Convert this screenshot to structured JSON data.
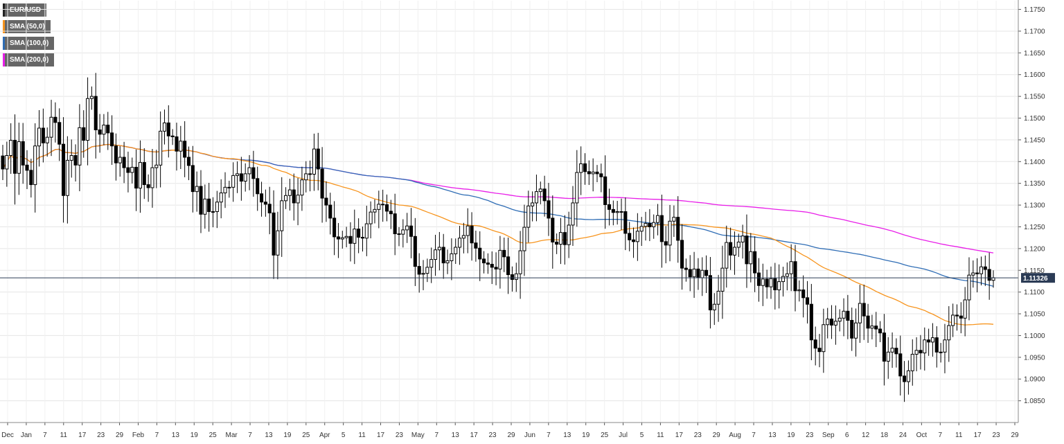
{
  "chart_data": {
    "type": "candlestick",
    "title": "",
    "instrument": "EUR/USD",
    "y_axis": {
      "min": 1.08,
      "max": 1.177,
      "ticks": [
        "1.1750",
        "1.1700",
        "1.1650",
        "1.1600",
        "1.1550",
        "1.1500",
        "1.1450",
        "1.1400",
        "1.1350",
        "1.1300",
        "1.1250",
        "1.1200",
        "1.1150",
        "1.1100",
        "1.1050",
        "1.1000",
        "1.0950",
        "1.0900",
        "1.0850"
      ],
      "position": "right"
    },
    "x_axis": {
      "labels": [
        "Dec",
        "Jan",
        "7",
        "11",
        "17",
        "23",
        "29",
        "Feb",
        "7",
        "13",
        "19",
        "25",
        "Mar",
        "7",
        "13",
        "19",
        "25",
        "Apr",
        "5",
        "11",
        "17",
        "23",
        "May",
        "7",
        "13",
        "17",
        "23",
        "29",
        "Jun",
        "7",
        "13",
        "19",
        "25",
        "Jul",
        "5",
        "11",
        "17",
        "23",
        "29",
        "Aug",
        "7",
        "13",
        "19",
        "23",
        "Sep",
        "6",
        "12",
        "18",
        "24",
        "Oct",
        "7",
        "11",
        "17",
        "23",
        "29"
      ]
    },
    "last_price": {
      "value": 1.11326,
      "label": "1.11326"
    },
    "legend": [
      {
        "label": "EUR/USD",
        "color": "#222222"
      },
      {
        "label": "SMA (50,0)",
        "color": "#f7941d"
      },
      {
        "label": "SMA (100,0)",
        "color": "#2f6db5"
      },
      {
        "label": "SMA (200,0)",
        "color": "#e81ee8"
      }
    ],
    "colors": {
      "up": "#ffffff",
      "down": "#000000",
      "outline": "#000000",
      "grid": "#e5e5e5",
      "price_line": "#2b3b55",
      "price_label_bg": "#2b3b55"
    },
    "series_close": [
      1.1383,
      1.1414,
      1.1449,
      1.1373,
      1.1446,
      1.1392,
      1.138,
      1.1347,
      1.1436,
      1.1477,
      1.1443,
      1.1456,
      1.1502,
      1.149,
      1.144,
      1.1322,
      1.1403,
      1.1414,
      1.1392,
      1.1478,
      1.1449,
      1.1545,
      1.155,
      1.1473,
      1.1463,
      1.1484,
      1.1466,
      1.1436,
      1.1397,
      1.141,
      1.1386,
      1.1375,
      1.1387,
      1.1339,
      1.1398,
      1.1347,
      1.134,
      1.1386,
      1.1392,
      1.147,
      1.1489,
      1.1459,
      1.1457,
      1.1424,
      1.1447,
      1.141,
      1.1391,
      1.1331,
      1.1343,
      1.1279,
      1.1314,
      1.1285,
      1.1285,
      1.1307,
      1.1328,
      1.1341,
      1.1341,
      1.1368,
      1.1372,
      1.1355,
      1.1372,
      1.1386,
      1.1361,
      1.1326,
      1.1307,
      1.1302,
      1.1282,
      1.1185,
      1.1241,
      1.131,
      1.1322,
      1.1335,
      1.1305,
      1.1323,
      1.1358,
      1.1372,
      1.1371,
      1.1429,
      1.1383,
      1.1316,
      1.13,
      1.127,
      1.1227,
      1.1222,
      1.1225,
      1.1228,
      1.1212,
      1.1245,
      1.1226,
      1.1224,
      1.1257,
      1.1284,
      1.129,
      1.1302,
      1.1301,
      1.1286,
      1.128,
      1.1234,
      1.1233,
      1.1243,
      1.1252,
      1.1228,
      1.1159,
      1.1141,
      1.1143,
      1.1157,
      1.1175,
      1.1197,
      1.1203,
      1.1167,
      1.1172,
      1.1188,
      1.1203,
      1.1224,
      1.123,
      1.1252,
      1.1213,
      1.1201,
      1.1176,
      1.1167,
      1.1164,
      1.1157,
      1.1153,
      1.1196,
      1.1181,
      1.114,
      1.1129,
      1.1142,
      1.1195,
      1.1249,
      1.1298,
      1.1305,
      1.1331,
      1.1337,
      1.131,
      1.127,
      1.1215,
      1.121,
      1.1237,
      1.1209,
      1.1254,
      1.1305,
      1.1375,
      1.1395,
      1.1377,
      1.1372,
      1.1376,
      1.1372,
      1.1365,
      1.1301,
      1.129,
      1.1283,
      1.1285,
      1.1285,
      1.1235,
      1.122,
      1.1216,
      1.124,
      1.1251,
      1.1258,
      1.125,
      1.126,
      1.1276,
      1.1216,
      1.1208,
      1.1263,
      1.1272,
      1.1219,
      1.1155,
      1.1152,
      1.1135,
      1.1153,
      1.1133,
      1.115,
      1.1138,
      1.1059,
      1.1072,
      1.1102,
      1.1155,
      1.1214,
      1.1185,
      1.1203,
      1.1215,
      1.1229,
      1.1165,
      1.1193,
      1.1144,
      1.1115,
      1.113,
      1.1112,
      1.1131,
      1.1105,
      1.1124,
      1.1136,
      1.1142,
      1.117,
      1.1103,
      1.1105,
      1.1087,
      1.1072,
      1.099,
      1.0971,
      1.0963,
      1.1025,
      1.1038,
      1.1024,
      1.1033,
      1.104,
      1.1056,
      1.1035,
      1.0994,
      1.1029,
      1.1074,
      1.1045,
      1.1017,
      1.1022,
      1.1015,
      1.1006,
      1.0941,
      1.0962,
      1.0971,
      1.0958,
      1.0907,
      1.0894,
      1.0919,
      1.0957,
      1.0966,
      1.096,
      1.099,
      1.0985,
      1.0995,
      1.0962,
      1.0962,
      1.099,
      1.1023,
      1.1047,
      1.1045,
      1.104,
      1.1082,
      1.1139,
      1.1144,
      1.1142,
      1.1158,
      1.1152,
      1.1127,
      1.1133
    ]
  }
}
